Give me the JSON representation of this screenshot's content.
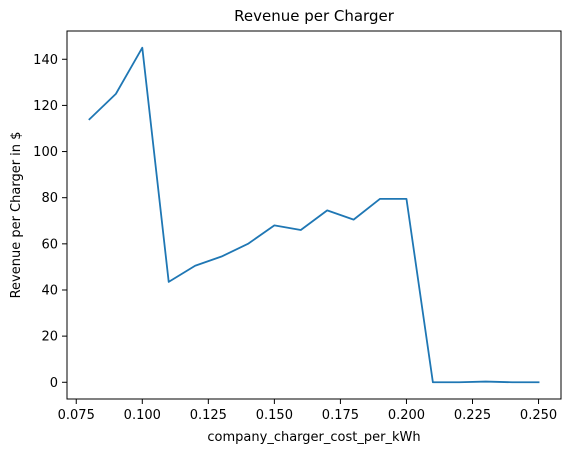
{
  "chart_data": {
    "type": "line",
    "title": "Revenue per Charger",
    "xlabel": "company_charger_cost_per_kWh",
    "ylabel": "Revenue per Charger in $",
    "xlim": [
      0.0715,
      0.2585
    ],
    "ylim": [
      -7.25,
      152.25
    ],
    "xticks": [
      "0.075",
      "0.100",
      "0.125",
      "0.150",
      "0.175",
      "0.200",
      "0.225",
      "0.250"
    ],
    "yticks": [
      "0",
      "20",
      "40",
      "60",
      "80",
      "100",
      "120",
      "140"
    ],
    "grid": false,
    "series": [
      {
        "color": "#1f77b4",
        "x": [
          0.08,
          0.09,
          0.1,
          0.11,
          0.12,
          0.13,
          0.14,
          0.15,
          0.16,
          0.17,
          0.18,
          0.19,
          0.2,
          0.21,
          0.22,
          0.23,
          0.24,
          0.25
        ],
        "y": [
          114,
          125,
          145,
          43.5,
          50.5,
          54.5,
          60,
          68,
          66,
          74.5,
          70.5,
          79.5,
          79.5,
          0,
          0,
          0.3,
          0,
          0
        ]
      }
    ]
  }
}
